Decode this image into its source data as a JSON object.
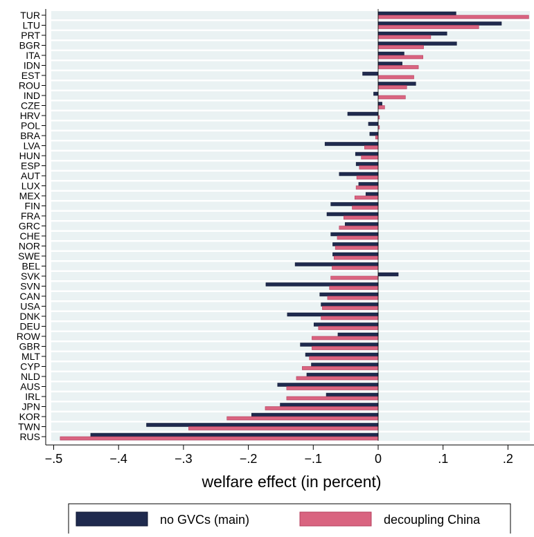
{
  "chart_data": {
    "type": "bar",
    "orientation": "horizontal",
    "xlabel": "welfare effect (in percent)",
    "xlim": [
      -0.5,
      0.24
    ],
    "xticks": [
      {
        "value": -0.5,
        "label": "−.5"
      },
      {
        "value": -0.4,
        "label": "−.4"
      },
      {
        "value": -0.3,
        "label": "−.3"
      },
      {
        "value": -0.2,
        "label": "−.2"
      },
      {
        "value": -0.1,
        "label": "−.1"
      },
      {
        "value": 0,
        "label": "0"
      },
      {
        "value": 0.1,
        "label": ".1"
      },
      {
        "value": 0.2,
        "label": ".2"
      }
    ],
    "grid": "alternating horizontal bands",
    "legend_position": "bottom",
    "categories": [
      "TUR",
      "LTU",
      "PRT",
      "BGR",
      "ITA",
      "IDN",
      "EST",
      "ROU",
      "IND",
      "CZE",
      "HRV",
      "POL",
      "BRA",
      "LVA",
      "HUN",
      "ESP",
      "AUT",
      "LUX",
      "MEX",
      "FIN",
      "FRA",
      "GRC",
      "CHE",
      "NOR",
      "SWE",
      "BEL",
      "SVK",
      "SVN",
      "CAN",
      "USA",
      "DNK",
      "DEU",
      "ROW",
      "GBR",
      "MLT",
      "CYP",
      "NLD",
      "AUS",
      "IRL",
      "JPN",
      "KOR",
      "TWN",
      "RUS"
    ],
    "series": [
      {
        "name": "no GVCs (main)",
        "color": "#1f2a4e",
        "values": [
          0.12,
          0.19,
          0.106,
          0.121,
          0.04,
          0.037,
          -0.024,
          0.058,
          -0.007,
          0.006,
          -0.047,
          -0.015,
          -0.013,
          -0.082,
          -0.035,
          -0.034,
          -0.06,
          -0.03,
          -0.019,
          -0.073,
          -0.079,
          -0.051,
          -0.073,
          -0.07,
          -0.07,
          -0.128,
          0.031,
          -0.173,
          -0.09,
          -0.088,
          -0.14,
          -0.099,
          -0.062,
          -0.12,
          -0.112,
          -0.103,
          -0.11,
          -0.155,
          -0.08,
          -0.151,
          -0.195,
          -0.357,
          -0.443
        ]
      },
      {
        "name": "decoupling China",
        "color": "#d96480",
        "values": [
          0.232,
          0.155,
          0.081,
          0.07,
          0.069,
          0.062,
          0.055,
          0.044,
          0.042,
          0.01,
          0.002,
          0.002,
          -0.004,
          -0.021,
          -0.026,
          -0.029,
          -0.033,
          -0.034,
          -0.036,
          -0.04,
          -0.053,
          -0.06,
          -0.063,
          -0.066,
          -0.068,
          -0.071,
          -0.073,
          -0.075,
          -0.078,
          -0.086,
          -0.088,
          -0.092,
          -0.102,
          -0.102,
          -0.106,
          -0.117,
          -0.126,
          -0.141,
          -0.141,
          -0.174,
          -0.233,
          -0.292,
          -0.49
        ]
      }
    ]
  },
  "colors": {
    "band_shade": "#eaf2f3",
    "main_bar": "#1f2a4e",
    "main_bar_edge": "#0e1530",
    "decoupling_bar": "#d96480",
    "decoupling_bar_edge": "#b53f5e"
  }
}
